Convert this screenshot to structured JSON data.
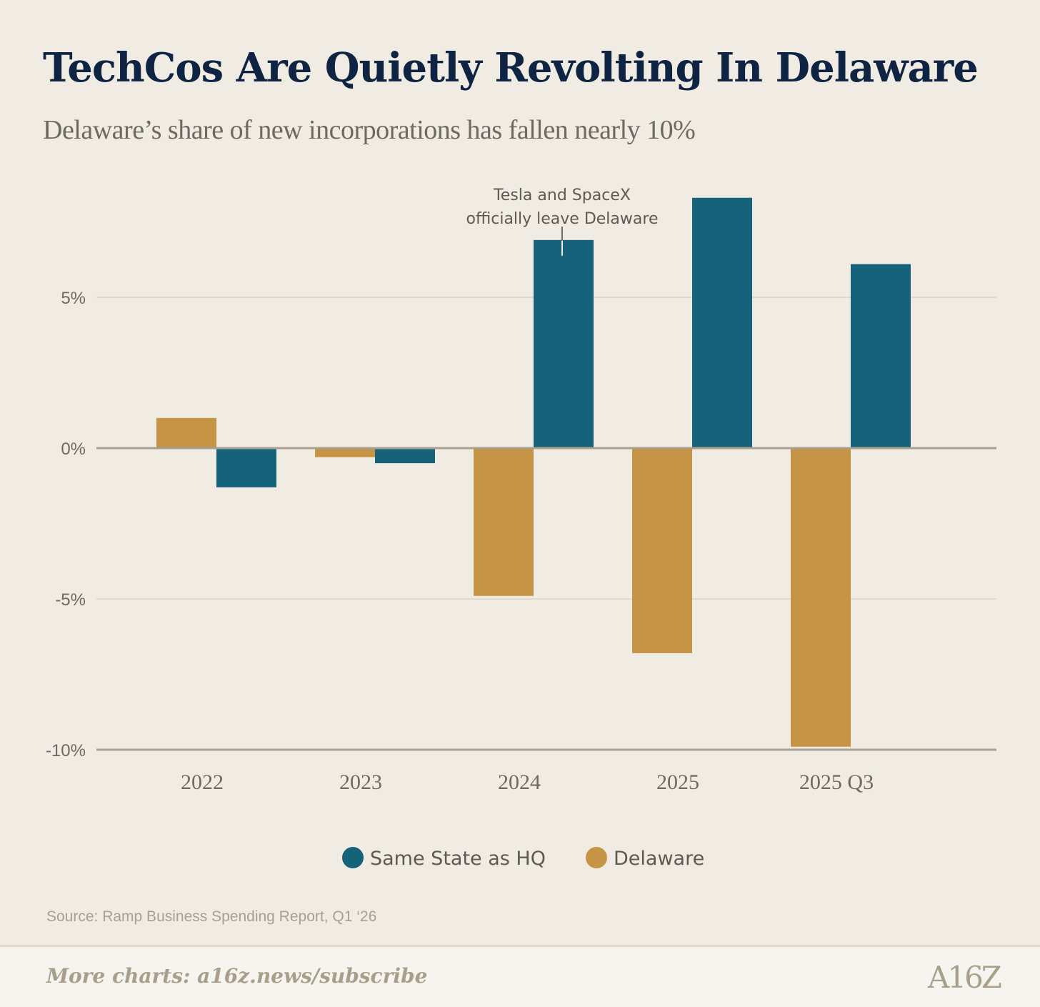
{
  "title": "TechCos Are Quietly Revolting In Delaware",
  "subtitle": "Delaware’s share of new incorporations has fallen nearly 10%",
  "source": "Source: Ramp Business Spending Report, Q1 ‘26",
  "footer": {
    "more_charts": "More charts: a16z.news/subscribe",
    "logo": "A16Z"
  },
  "chart_data": {
    "type": "bar",
    "categories": [
      "2022",
      "2023",
      "2024",
      "2025",
      "2025 Q3"
    ],
    "series": [
      {
        "name": "Delaware",
        "color": "#c69445",
        "values": [
          1.0,
          -0.3,
          -4.9,
          -6.8,
          -9.9
        ]
      },
      {
        "name": "Same State as HQ",
        "color": "#16627b",
        "values": [
          -1.3,
          -0.5,
          6.9,
          8.3,
          6.1
        ]
      }
    ],
    "legend_order": [
      "Same State as HQ",
      "Delaware"
    ],
    "legend_position": "bottom",
    "yticks": [
      5,
      0,
      -5,
      -10
    ],
    "ytick_labels": [
      "5%",
      "0%",
      "-5%",
      "-10%"
    ],
    "ylim": [
      -10,
      9
    ],
    "grid": true,
    "annotation": {
      "category": "2024",
      "series": "Same State as HQ",
      "lines": [
        "Tesla and SpaceX",
        "officially leave Delaware"
      ]
    }
  }
}
